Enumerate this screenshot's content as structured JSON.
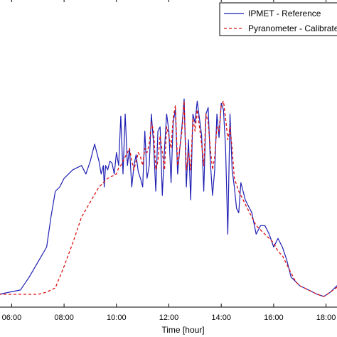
{
  "chart_data": {
    "type": "line",
    "title": "",
    "xlabel": "Time [hour]",
    "ylabel": "",
    "xlim": [
      "05:30",
      "18:30"
    ],
    "ylim": [
      0,
      1
    ],
    "grid": false,
    "legend_position": "top-right",
    "x_ticks": [
      "06:00",
      "08:00",
      "10:00",
      "12:00",
      "14:00",
      "16:00",
      "18:00"
    ],
    "series": [
      {
        "name": "IPMET - Reference",
        "color": "#1f1fb4",
        "style": "solid",
        "x": [
          "05:30",
          "06:20",
          "06:40",
          "07:00",
          "07:20",
          "07:30",
          "07:40",
          "07:50",
          "08:00",
          "08:20",
          "08:40",
          "08:50",
          "09:00",
          "09:05",
          "09:10",
          "09:20",
          "09:25",
          "09:30",
          "09:32",
          "09:35",
          "09:40",
          "09:45",
          "09:50",
          "09:55",
          "10:00",
          "10:05",
          "10:10",
          "10:15",
          "10:20",
          "10:25",
          "10:30",
          "10:35",
          "10:40",
          "10:45",
          "10:50",
          "10:55",
          "11:00",
          "11:05",
          "11:10",
          "11:15",
          "11:20",
          "11:25",
          "11:30",
          "11:35",
          "11:40",
          "11:45",
          "11:50",
          "11:55",
          "12:00",
          "12:05",
          "12:10",
          "12:15",
          "12:20",
          "12:25",
          "12:30",
          "12:35",
          "12:40",
          "12:45",
          "12:50",
          "12:55",
          "13:00",
          "13:05",
          "13:10",
          "13:15",
          "13:20",
          "13:25",
          "13:30",
          "13:35",
          "13:40",
          "13:45",
          "13:50",
          "13:55",
          "14:00",
          "14:05",
          "14:10",
          "14:15",
          "14:20",
          "14:25",
          "14:30",
          "14:35",
          "14:40",
          "14:45",
          "14:50",
          "14:55",
          "15:00",
          "15:10",
          "15:20",
          "15:30",
          "15:40",
          "15:50",
          "16:00",
          "16:10",
          "16:20",
          "16:30",
          "16:40",
          "16:50",
          "17:00",
          "17:20",
          "17:40",
          "17:55",
          "18:10",
          "18:30"
        ],
        "values": [
          0.02,
          0.04,
          0.1,
          0.17,
          0.24,
          0.38,
          0.5,
          0.52,
          0.56,
          0.6,
          0.62,
          0.58,
          0.64,
          0.68,
          0.72,
          0.64,
          0.58,
          0.62,
          0.52,
          0.62,
          0.6,
          0.64,
          0.63,
          0.58,
          0.68,
          0.62,
          0.85,
          0.58,
          0.86,
          0.62,
          0.7,
          0.52,
          0.62,
          0.67,
          0.59,
          0.56,
          0.52,
          0.78,
          0.56,
          0.62,
          0.86,
          0.72,
          0.5,
          0.78,
          0.8,
          0.48,
          0.7,
          0.86,
          0.78,
          0.54,
          0.82,
          0.88,
          0.58,
          0.7,
          0.8,
          0.93,
          0.52,
          0.74,
          0.46,
          0.86,
          0.82,
          0.92,
          0.84,
          0.76,
          0.5,
          0.86,
          0.89,
          0.64,
          0.48,
          0.6,
          0.86,
          0.75,
          0.91,
          0.88,
          0.7,
          0.3,
          0.86,
          0.6,
          0.52,
          0.42,
          0.4,
          0.54,
          0.5,
          0.46,
          0.44,
          0.4,
          0.3,
          0.34,
          0.34,
          0.3,
          0.24,
          0.28,
          0.24,
          0.18,
          0.1,
          0.08,
          0.06,
          0.04,
          0.02,
          0.01,
          0.03,
          0.07
        ]
      },
      {
        "name": "Pyranometer - Calibrated",
        "color": "#dd1111",
        "style": "dashed",
        "x": [
          "05:30",
          "07:00",
          "07:20",
          "07:40",
          "08:00",
          "08:20",
          "08:40",
          "09:00",
          "09:20",
          "09:40",
          "10:00",
          "10:05",
          "10:10",
          "10:15",
          "10:20",
          "10:25",
          "10:30",
          "10:35",
          "10:40",
          "10:45",
          "10:50",
          "10:55",
          "11:00",
          "11:05",
          "11:10",
          "11:15",
          "11:20",
          "11:25",
          "11:30",
          "11:35",
          "11:40",
          "11:45",
          "11:50",
          "11:55",
          "12:00",
          "12:05",
          "12:10",
          "12:15",
          "12:20",
          "12:25",
          "12:30",
          "12:35",
          "12:40",
          "12:45",
          "12:50",
          "12:55",
          "13:00",
          "13:05",
          "13:10",
          "13:15",
          "13:20",
          "13:25",
          "13:30",
          "13:35",
          "13:40",
          "13:45",
          "13:50",
          "13:55",
          "14:00",
          "14:05",
          "14:10",
          "14:15",
          "14:20",
          "14:25",
          "14:30",
          "14:40",
          "14:50",
          "15:00",
          "15:10",
          "15:20",
          "15:30",
          "15:40",
          "15:50",
          "16:00",
          "16:10",
          "16:20",
          "16:30",
          "16:40",
          "16:50",
          "17:00",
          "17:20",
          "17:40",
          "17:55",
          "18:10",
          "18:30"
        ],
        "values": [
          0.02,
          0.02,
          0.03,
          0.05,
          0.15,
          0.26,
          0.38,
          0.45,
          0.52,
          0.56,
          0.58,
          0.61,
          0.62,
          0.64,
          0.66,
          0.68,
          0.7,
          0.64,
          0.6,
          0.64,
          0.68,
          0.66,
          0.62,
          0.7,
          0.68,
          0.72,
          0.82,
          0.78,
          0.6,
          0.64,
          0.76,
          0.68,
          0.6,
          0.8,
          0.76,
          0.7,
          0.84,
          0.9,
          0.62,
          0.7,
          0.78,
          0.92,
          0.6,
          0.68,
          0.6,
          0.84,
          0.78,
          0.88,
          0.8,
          0.72,
          0.62,
          0.86,
          0.82,
          0.7,
          0.6,
          0.66,
          0.8,
          0.78,
          0.9,
          0.92,
          0.84,
          0.74,
          0.8,
          0.7,
          0.56,
          0.5,
          0.46,
          0.42,
          0.38,
          0.34,
          0.32,
          0.3,
          0.28,
          0.26,
          0.22,
          0.2,
          0.16,
          0.12,
          0.08,
          0.06,
          0.04,
          0.02,
          0.01,
          0.03,
          0.06
        ]
      }
    ]
  }
}
